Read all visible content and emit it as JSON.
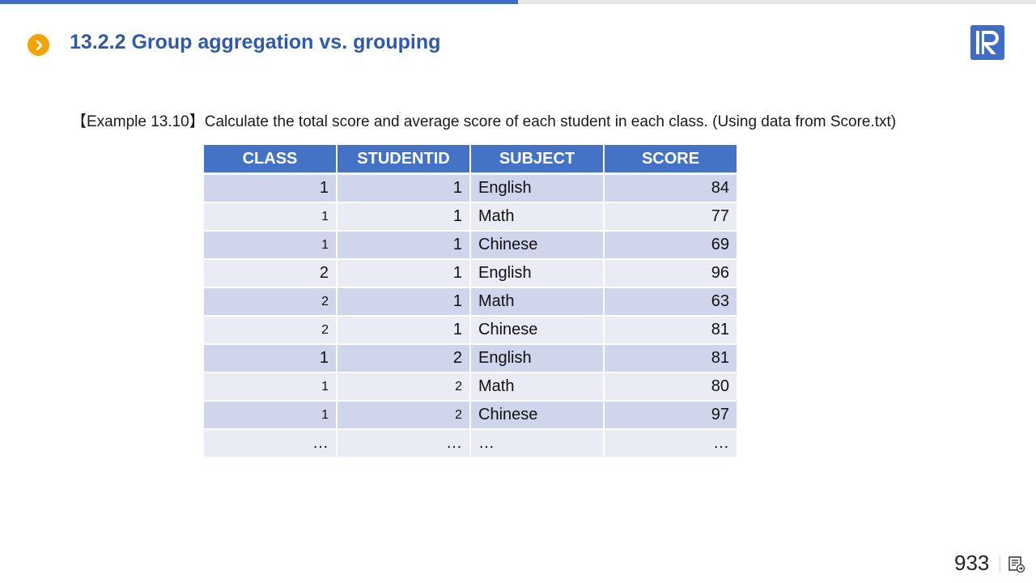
{
  "progress": {
    "fraction": 0.5,
    "color": "#3f6cc4"
  },
  "header": {
    "bullet_icon": "chevron-right-icon",
    "title": "13.2.2 Group aggregation vs. grouping",
    "logo_icon": "brand-logo-r"
  },
  "example_text": "【Example 13.10】Calculate the total score and average score of each student in each class. (Using data from Score.txt)",
  "table": {
    "headers": [
      "CLASS",
      "STUDENTID",
      "SUBJECT",
      "SCORE"
    ],
    "rows": [
      [
        "1",
        "1",
        "English",
        "84"
      ],
      [
        "1",
        "1",
        "Math",
        "77"
      ],
      [
        "1",
        "1",
        "Chinese",
        "69"
      ],
      [
        "2",
        "1",
        "English",
        "96"
      ],
      [
        "2",
        "1",
        "Math",
        "63"
      ],
      [
        "2",
        "1",
        "Chinese",
        "81"
      ],
      [
        "1",
        "2",
        "English",
        "81"
      ],
      [
        "1",
        "2",
        "Math",
        "80"
      ],
      [
        "1",
        "2",
        "Chinese",
        "97"
      ],
      [
        "…",
        "…",
        "…",
        "…"
      ]
    ]
  },
  "footer": {
    "page_number": "933",
    "notes_icon": "notes-icon"
  },
  "colors": {
    "title": "#2f5aa8",
    "bullet": "#f0a30a",
    "table_header": "#4472c4",
    "row_dark": "#cfd5ea",
    "row_light": "#e9ebf5"
  }
}
